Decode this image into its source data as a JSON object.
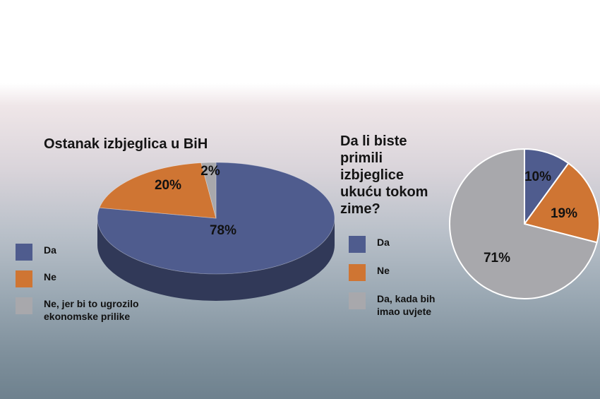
{
  "chart_data": [
    {
      "type": "pie",
      "title": "Ostanak izbjeglica u BiH",
      "categories": [
        "Da",
        "Ne",
        "Ne, jer bi to ugrozilo ekonomske prilike"
      ],
      "values": [
        78,
        20,
        2
      ],
      "labels": [
        "78%",
        "20%",
        "2%"
      ],
      "colors": [
        "#4f5c8e",
        "#cf7533",
        "#a8a8ac"
      ],
      "style": "3d",
      "legend_position": "left"
    },
    {
      "type": "pie",
      "title": "Da li biste primili izbjeglice ukuću tokom zime?",
      "categories": [
        "Da",
        "Ne",
        "Da, kada bih imao uvjete"
      ],
      "values": [
        10,
        19,
        71
      ],
      "labels": [
        "10%",
        "19%",
        "71%"
      ],
      "colors": [
        "#4f5c8e",
        "#cf7533",
        "#a8a8ac"
      ],
      "legend_position": "left"
    }
  ]
}
